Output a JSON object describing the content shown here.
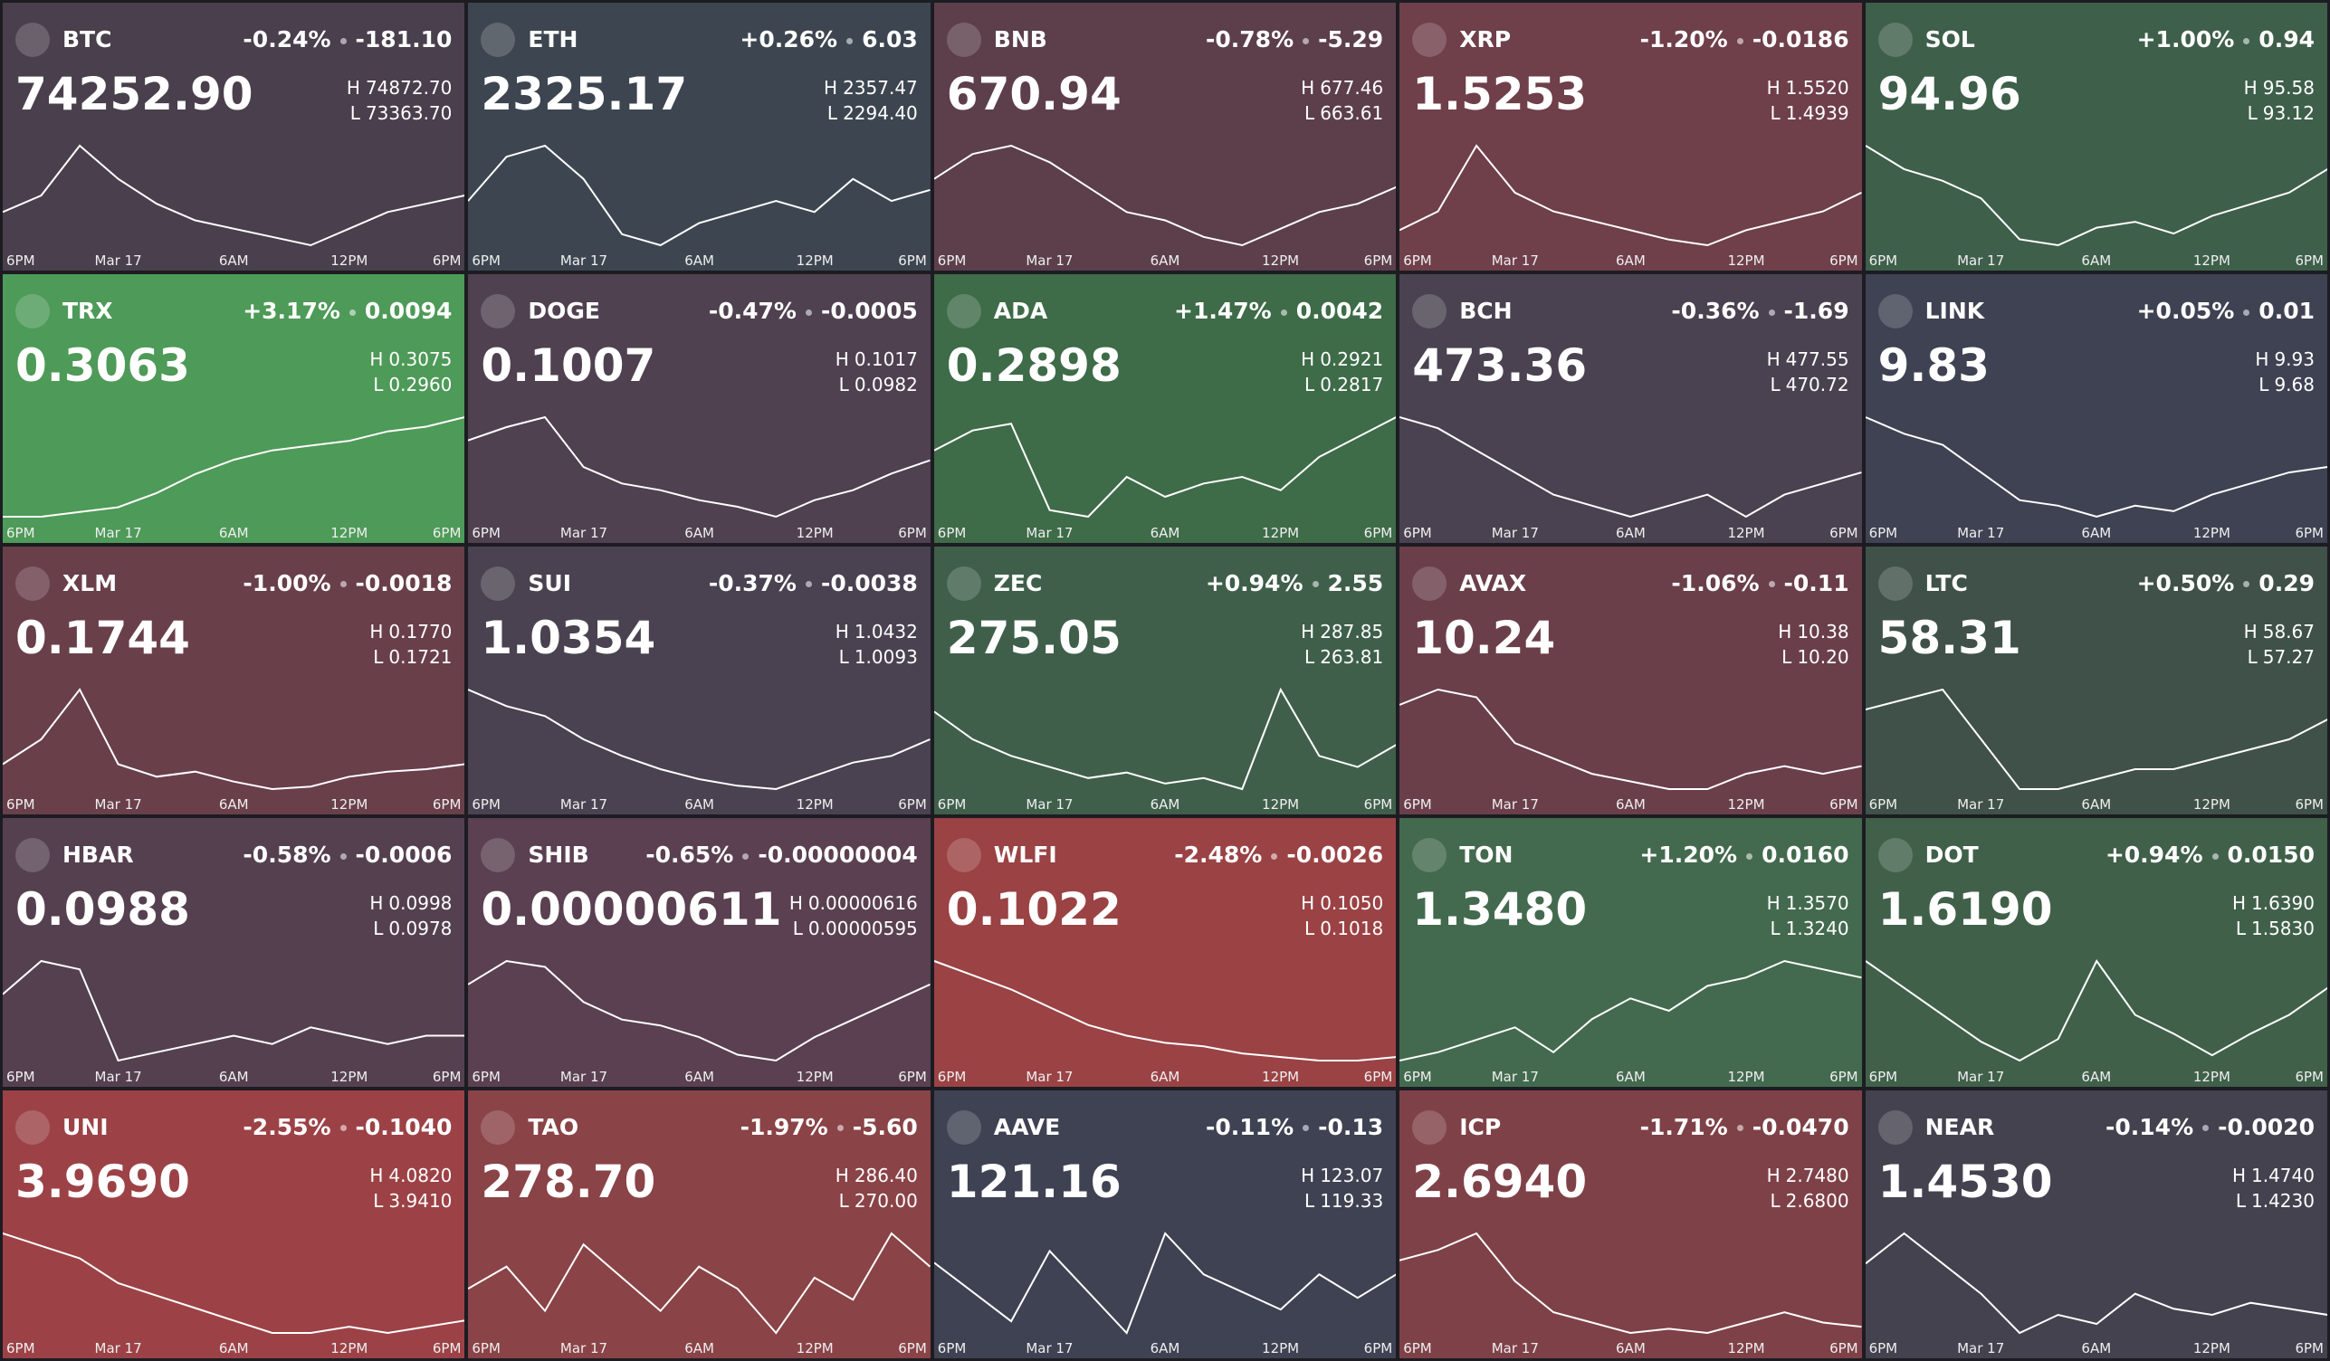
{
  "high_prefix": "H",
  "low_prefix": "L",
  "time_labels": [
    "6PM",
    "Mar 17",
    "6AM",
    "12PM",
    "6PM"
  ],
  "tiles": [
    {
      "symbol": "BTC",
      "change_pct": "-0.24%",
      "change": "-181.10",
      "price": "74252.90",
      "high": "74872.70",
      "low": "73363.70",
      "color": "#4a3f4c",
      "spark": [
        73900,
        74100,
        74700,
        74300,
        74000,
        73800,
        73700,
        73600,
        73500,
        73700,
        73900,
        74000,
        74100
      ]
    },
    {
      "symbol": "ETH",
      "change_pct": "+0.26%",
      "change": "6.03",
      "price": "2325.17",
      "high": "2357.47",
      "low": "2294.40",
      "color": "#3d4650",
      "spark": [
        2320,
        2340,
        2345,
        2330,
        2305,
        2300,
        2310,
        2315,
        2320,
        2315,
        2330,
        2320,
        2325
      ]
    },
    {
      "symbol": "BNB",
      "change_pct": "-0.78%",
      "change": "-5.29",
      "price": "670.94",
      "high": "677.46",
      "low": "663.61",
      "color": "#5c3f4b",
      "spark": [
        672,
        675,
        676,
        674,
        671,
        668,
        667,
        665,
        664,
        666,
        668,
        669,
        671
      ]
    },
    {
      "symbol": "XRP",
      "change_pct": "-1.20%",
      "change": "-0.0186",
      "price": "1.5253",
      "high": "1.5520",
      "low": "1.4939",
      "color": "#6f3f4a",
      "spark": [
        1.505,
        1.515,
        1.55,
        1.525,
        1.515,
        1.51,
        1.505,
        1.5,
        1.497,
        1.505,
        1.51,
        1.515,
        1.525
      ]
    },
    {
      "symbol": "SOL",
      "change_pct": "+1.00%",
      "change": "0.94",
      "price": "94.96",
      "high": "95.58",
      "low": "93.12",
      "color": "#3e5f4a",
      "spark": [
        95.2,
        94.8,
        94.6,
        94.3,
        93.6,
        93.5,
        93.8,
        93.9,
        93.7,
        94.0,
        94.2,
        94.4,
        94.8
      ]
    },
    {
      "symbol": "TRX",
      "change_pct": "+3.17%",
      "change": "0.0094",
      "price": "0.3063",
      "high": "0.3075",
      "low": "0.2960",
      "color": "#4e9a58",
      "spark": [
        0.2965,
        0.2965,
        0.297,
        0.2975,
        0.299,
        0.301,
        0.3025,
        0.3035,
        0.304,
        0.3045,
        0.3055,
        0.306,
        0.307
      ]
    },
    {
      "symbol": "DOGE",
      "change_pct": "-0.47%",
      "change": "-0.0005",
      "price": "0.1007",
      "high": "0.1017",
      "low": "0.0982",
      "color": "#4f4150",
      "spark": [
        0.1008,
        0.1012,
        0.1015,
        0.1,
        0.0995,
        0.0993,
        0.099,
        0.0988,
        0.0985,
        0.099,
        0.0993,
        0.0998,
        0.1002
      ]
    },
    {
      "symbol": "ADA",
      "change_pct": "+1.47%",
      "change": "0.0042",
      "price": "0.2898",
      "high": "0.2921",
      "low": "0.2817",
      "color": "#3e6b48",
      "spark": [
        0.288,
        0.2895,
        0.29,
        0.2835,
        0.283,
        0.286,
        0.2845,
        0.2855,
        0.286,
        0.285,
        0.2875,
        0.289,
        0.2905
      ]
    },
    {
      "symbol": "BCH",
      "change_pct": "-0.36%",
      "change": "-1.69",
      "price": "473.36",
      "high": "477.55",
      "low": "470.72",
      "color": "#4a4250",
      "spark": [
        476,
        475.5,
        474.5,
        473.5,
        472.5,
        472,
        471.5,
        472,
        472.5,
        471.5,
        472.5,
        473,
        473.5
      ]
    },
    {
      "symbol": "LINK",
      "change_pct": "+0.05%",
      "change": "0.01",
      "price": "9.83",
      "high": "9.93",
      "low": "9.68",
      "color": "#3e4252",
      "spark": [
        9.9,
        9.87,
        9.85,
        9.8,
        9.75,
        9.74,
        9.72,
        9.74,
        9.73,
        9.76,
        9.78,
        9.8,
        9.81
      ]
    },
    {
      "symbol": "XLM",
      "change_pct": "-1.00%",
      "change": "-0.0018",
      "price": "0.1744",
      "high": "0.1770",
      "low": "0.1721",
      "color": "#693f4a",
      "spark": [
        0.1735,
        0.1745,
        0.1765,
        0.1735,
        0.173,
        0.1732,
        0.1728,
        0.1725,
        0.1726,
        0.173,
        0.1732,
        0.1733,
        0.1735
      ]
    },
    {
      "symbol": "SUI",
      "change_pct": "-0.37%",
      "change": "-0.0038",
      "price": "1.0354",
      "high": "1.0432",
      "low": "1.0093",
      "color": "#4a4250",
      "spark": [
        1.04,
        1.035,
        1.032,
        1.025,
        1.02,
        1.016,
        1.013,
        1.011,
        1.01,
        1.014,
        1.018,
        1.02,
        1.025
      ]
    },
    {
      "symbol": "ZEC",
      "change_pct": "+0.94%",
      "change": "2.55",
      "price": "275.05",
      "high": "287.85",
      "low": "263.81",
      "color": "#3f5f4a",
      "spark": [
        280,
        275,
        272,
        270,
        268,
        269,
        267,
        268,
        266,
        284,
        272,
        270,
        274
      ]
    },
    {
      "symbol": "AVAX",
      "change_pct": "-1.06%",
      "change": "-0.11",
      "price": "10.24",
      "high": "10.38",
      "low": "10.20",
      "color": "#6a3f4a",
      "spark": [
        10.33,
        10.35,
        10.34,
        10.28,
        10.26,
        10.24,
        10.23,
        10.22,
        10.22,
        10.24,
        10.25,
        10.24,
        10.25
      ]
    },
    {
      "symbol": "LTC",
      "change_pct": "+0.50%",
      "change": "0.29",
      "price": "58.31",
      "high": "58.67",
      "low": "57.27",
      "color": "#3f5149",
      "spark": [
        58.3,
        58.4,
        58.5,
        58.0,
        57.5,
        57.5,
        57.6,
        57.7,
        57.7,
        57.8,
        57.9,
        58.0,
        58.2
      ]
    },
    {
      "symbol": "HBAR",
      "change_pct": "-0.58%",
      "change": "-0.0006",
      "price": "0.0988",
      "high": "0.0998",
      "low": "0.0978",
      "color": "#554050",
      "spark": [
        0.099,
        0.0994,
        0.0993,
        0.0982,
        0.0983,
        0.0984,
        0.0985,
        0.0984,
        0.0986,
        0.0985,
        0.0984,
        0.0985,
        0.0985
      ]
    },
    {
      "symbol": "SHIB",
      "change_pct": "-0.65%",
      "change": "-0.00000004",
      "price": "0.00000611",
      "high": "0.00000616",
      "low": "0.00000595",
      "color": "#5a4050",
      "spark": [
        6.1e-06,
        6.14e-06,
        6.13e-06,
        6.07e-06,
        6.04e-06,
        6.03e-06,
        6.01e-06,
        5.98e-06,
        5.97e-06,
        6.01e-06,
        6.04e-06,
        6.07e-06,
        6.1e-06
      ]
    },
    {
      "symbol": "WLFI",
      "change_pct": "-2.48%",
      "change": "-0.0026",
      "price": "0.1022",
      "high": "0.1050",
      "low": "0.1018",
      "color": "#9a4244",
      "spark": [
        0.1048,
        0.1044,
        0.104,
        0.1035,
        0.103,
        0.1027,
        0.1025,
        0.1024,
        0.1022,
        0.1021,
        0.102,
        0.102,
        0.1021
      ]
    },
    {
      "symbol": "TON",
      "change_pct": "+1.20%",
      "change": "0.0160",
      "price": "1.3480",
      "high": "1.3570",
      "low": "1.3240",
      "color": "#436a4e",
      "spark": [
        1.33,
        1.332,
        1.335,
        1.338,
        1.332,
        1.34,
        1.345,
        1.342,
        1.348,
        1.35,
        1.354,
        1.352,
        1.35
      ]
    },
    {
      "symbol": "DOT",
      "change_pct": "+0.94%",
      "change": "0.0150",
      "price": "1.6190",
      "high": "1.6390",
      "low": "1.5830",
      "color": "#40604a",
      "spark": [
        1.625,
        1.615,
        1.605,
        1.595,
        1.588,
        1.596,
        1.625,
        1.605,
        1.598,
        1.59,
        1.598,
        1.605,
        1.615
      ]
    },
    {
      "symbol": "UNI",
      "change_pct": "-2.55%",
      "change": "-0.1040",
      "price": "3.9690",
      "high": "4.0820",
      "low": "3.9410",
      "color": "#9c4246",
      "spark": [
        4.03,
        4.02,
        4.01,
        3.99,
        3.98,
        3.97,
        3.96,
        3.95,
        3.95,
        3.955,
        3.95,
        3.955,
        3.96
      ]
    },
    {
      "symbol": "TAO",
      "change_pct": "-1.97%",
      "change": "-5.60",
      "price": "278.70",
      "high": "286.40",
      "low": "270.00",
      "color": "#8a4347",
      "spark": [
        278,
        280,
        276,
        282,
        279,
        276,
        280,
        278,
        274,
        279,
        277,
        283,
        280
      ]
    },
    {
      "symbol": "AAVE",
      "change_pct": "-0.11%",
      "change": "-0.13",
      "price": "121.16",
      "high": "123.07",
      "low": "119.33",
      "color": "#3e4252",
      "spark": [
        121,
        120.5,
        120,
        121.2,
        120.5,
        119.8,
        121.5,
        120.8,
        120.5,
        120.2,
        120.8,
        120.4,
        120.8
      ]
    },
    {
      "symbol": "ICP",
      "change_pct": "-1.71%",
      "change": "-0.0470",
      "price": "2.6940",
      "high": "2.7480",
      "low": "2.6800",
      "color": "#7f4148",
      "spark": [
        2.725,
        2.73,
        2.738,
        2.715,
        2.7,
        2.695,
        2.69,
        2.692,
        2.69,
        2.695,
        2.7,
        2.695,
        2.693
      ]
    },
    {
      "symbol": "NEAR",
      "change_pct": "-0.14%",
      "change": "-0.0020",
      "price": "1.4530",
      "high": "1.4740",
      "low": "1.4230",
      "color": "#44424f",
      "spark": [
        1.455,
        1.465,
        1.455,
        1.445,
        1.432,
        1.438,
        1.435,
        1.445,
        1.44,
        1.438,
        1.442,
        1.44,
        1.438
      ]
    }
  ]
}
